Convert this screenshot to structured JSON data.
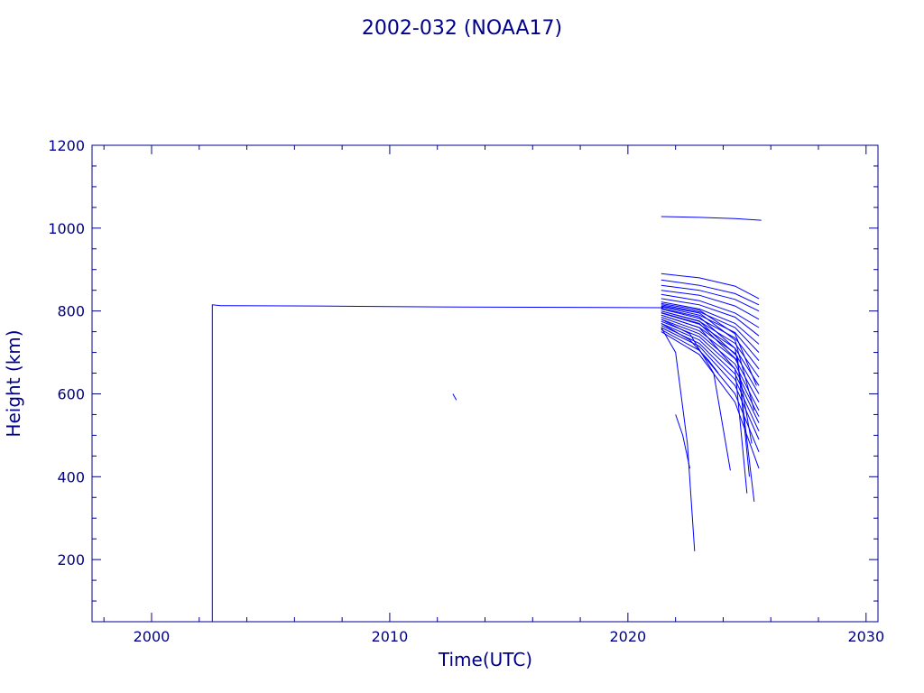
{
  "chart_data": {
    "type": "line",
    "title": "2002-032 (NOAA17)",
    "xlabel": "Time(UTC)",
    "ylabel": "Height (km)",
    "xlim": [
      1997.5,
      2030.5
    ],
    "ylim": [
      50,
      1200
    ],
    "xticks": [
      2000,
      2010,
      2020,
      2030
    ],
    "yticks": [
      200,
      400,
      600,
      800,
      1000,
      1200
    ],
    "grid": false,
    "color": "#0000ff",
    "frame_color": "#00008b",
    "series": [
      {
        "x": [
          2002.55,
          2002.55,
          2002.9,
          2007.0,
          2012.0,
          2016.0,
          2021.5
        ],
        "y": [
          50,
          815,
          813,
          812,
          810,
          809,
          808
        ]
      },
      {
        "x": [
          2012.65,
          2012.8
        ],
        "y": [
          600,
          585
        ]
      },
      {
        "x": [
          2021.4,
          2023.0,
          2024.5,
          2025.6
        ],
        "y": [
          1028,
          1026,
          1023,
          1019
        ]
      },
      {
        "x": [
          2021.4,
          2023.0,
          2024.5,
          2025.5
        ],
        "y": [
          890,
          880,
          860,
          830
        ]
      },
      {
        "x": [
          2021.4,
          2023.0,
          2024.5,
          2025.5
        ],
        "y": [
          875,
          862,
          842,
          815
        ]
      },
      {
        "x": [
          2021.4,
          2023.0,
          2024.5,
          2025.5
        ],
        "y": [
          862,
          850,
          828,
          800
        ]
      },
      {
        "x": [
          2021.4,
          2023.0,
          2024.5,
          2025.5
        ],
        "y": [
          850,
          838,
          812,
          780
        ]
      },
      {
        "x": [
          2021.4,
          2023.0,
          2024.5,
          2025.5
        ],
        "y": [
          840,
          825,
          795,
          760
        ]
      },
      {
        "x": [
          2021.4,
          2023.0,
          2024.5,
          2025.5
        ],
        "y": [
          830,
          815,
          785,
          740
        ]
      },
      {
        "x": [
          2021.4,
          2023.0,
          2024.5,
          2025.5
        ],
        "y": [
          822,
          805,
          770,
          720
        ]
      },
      {
        "x": [
          2021.4,
          2023.0,
          2024.5,
          2025.5
        ],
        "y": [
          815,
          798,
          760,
          700
        ]
      },
      {
        "x": [
          2021.4,
          2023.0,
          2024.5,
          2025.5
        ],
        "y": [
          810,
          790,
          748,
          680
        ]
      },
      {
        "x": [
          2021.4,
          2023.0,
          2024.5,
          2025.5
        ],
        "y": [
          805,
          782,
          735,
          660
        ]
      },
      {
        "x": [
          2021.4,
          2023.0,
          2024.5,
          2025.5
        ],
        "y": [
          800,
          775,
          722,
          640
        ]
      },
      {
        "x": [
          2021.4,
          2023.0,
          2024.5,
          2025.5
        ],
        "y": [
          795,
          768,
          710,
          620
        ]
      },
      {
        "x": [
          2021.4,
          2023.0,
          2024.5,
          2025.5
        ],
        "y": [
          790,
          760,
          698,
          600
        ]
      },
      {
        "x": [
          2021.4,
          2023.0,
          2024.5,
          2025.5
        ],
        "y": [
          785,
          752,
          685,
          580
        ]
      },
      {
        "x": [
          2021.4,
          2023.0,
          2024.5,
          2025.5
        ],
        "y": [
          780,
          745,
          672,
          560
        ]
      },
      {
        "x": [
          2021.4,
          2023.0,
          2024.5,
          2025.5
        ],
        "y": [
          775,
          738,
          660,
          545
        ]
      },
      {
        "x": [
          2021.4,
          2023.0,
          2024.5,
          2025.5
        ],
        "y": [
          770,
          730,
          648,
          530
        ]
      },
      {
        "x": [
          2021.4,
          2023.0,
          2024.5,
          2025.5
        ],
        "y": [
          765,
          722,
          635,
          510
        ]
      },
      {
        "x": [
          2021.4,
          2023.0,
          2024.5,
          2025.5
        ],
        "y": [
          760,
          715,
          620,
          490
        ]
      },
      {
        "x": [
          2021.4,
          2023.0,
          2024.5,
          2025.5
        ],
        "y": [
          755,
          705,
          600,
          460
        ]
      },
      {
        "x": [
          2021.4,
          2023.0,
          2024.5,
          2025.5
        ],
        "y": [
          750,
          695,
          580,
          420
        ]
      },
      {
        "x": [
          2021.4,
          2023.0,
          2024.5,
          2025.4
        ],
        "y": [
          818,
          802,
          745,
          620
        ]
      },
      {
        "x": [
          2021.4,
          2023.0,
          2024.5,
          2025.3
        ],
        "y": [
          812,
          795,
          730,
          560
        ]
      },
      {
        "x": [
          2021.4,
          2023.0,
          2024.5,
          2025.2
        ],
        "y": [
          806,
          786,
          710,
          480
        ]
      },
      {
        "x": [
          2021.4,
          2023.0,
          2024.6,
          2025.1
        ],
        "y": [
          800,
          776,
          690,
          400
        ]
      },
      {
        "x": [
          2021.4,
          2023.0,
          2024.6,
          2025.3
        ],
        "y": [
          796,
          770,
          680,
          340
        ]
      },
      {
        "x": [
          2021.4,
          2023.0,
          2024.5,
          2025.0
        ],
        "y": [
          790,
          760,
          660,
          360
        ]
      },
      {
        "x": [
          2021.4,
          2022.6,
          2023.6,
          2024.3
        ],
        "y": [
          780,
          745,
          650,
          415
        ]
      },
      {
        "x": [
          2021.4,
          2022.6,
          2023.4,
          2023.8
        ],
        "y": [
          770,
          730,
          680,
          650
        ]
      },
      {
        "x": [
          2021.4,
          2022.0,
          2022.5,
          2022.8
        ],
        "y": [
          760,
          700,
          480,
          220
        ]
      },
      {
        "x": [
          2022.0,
          2022.3,
          2022.6
        ],
        "y": [
          550,
          500,
          420
        ]
      }
    ]
  }
}
